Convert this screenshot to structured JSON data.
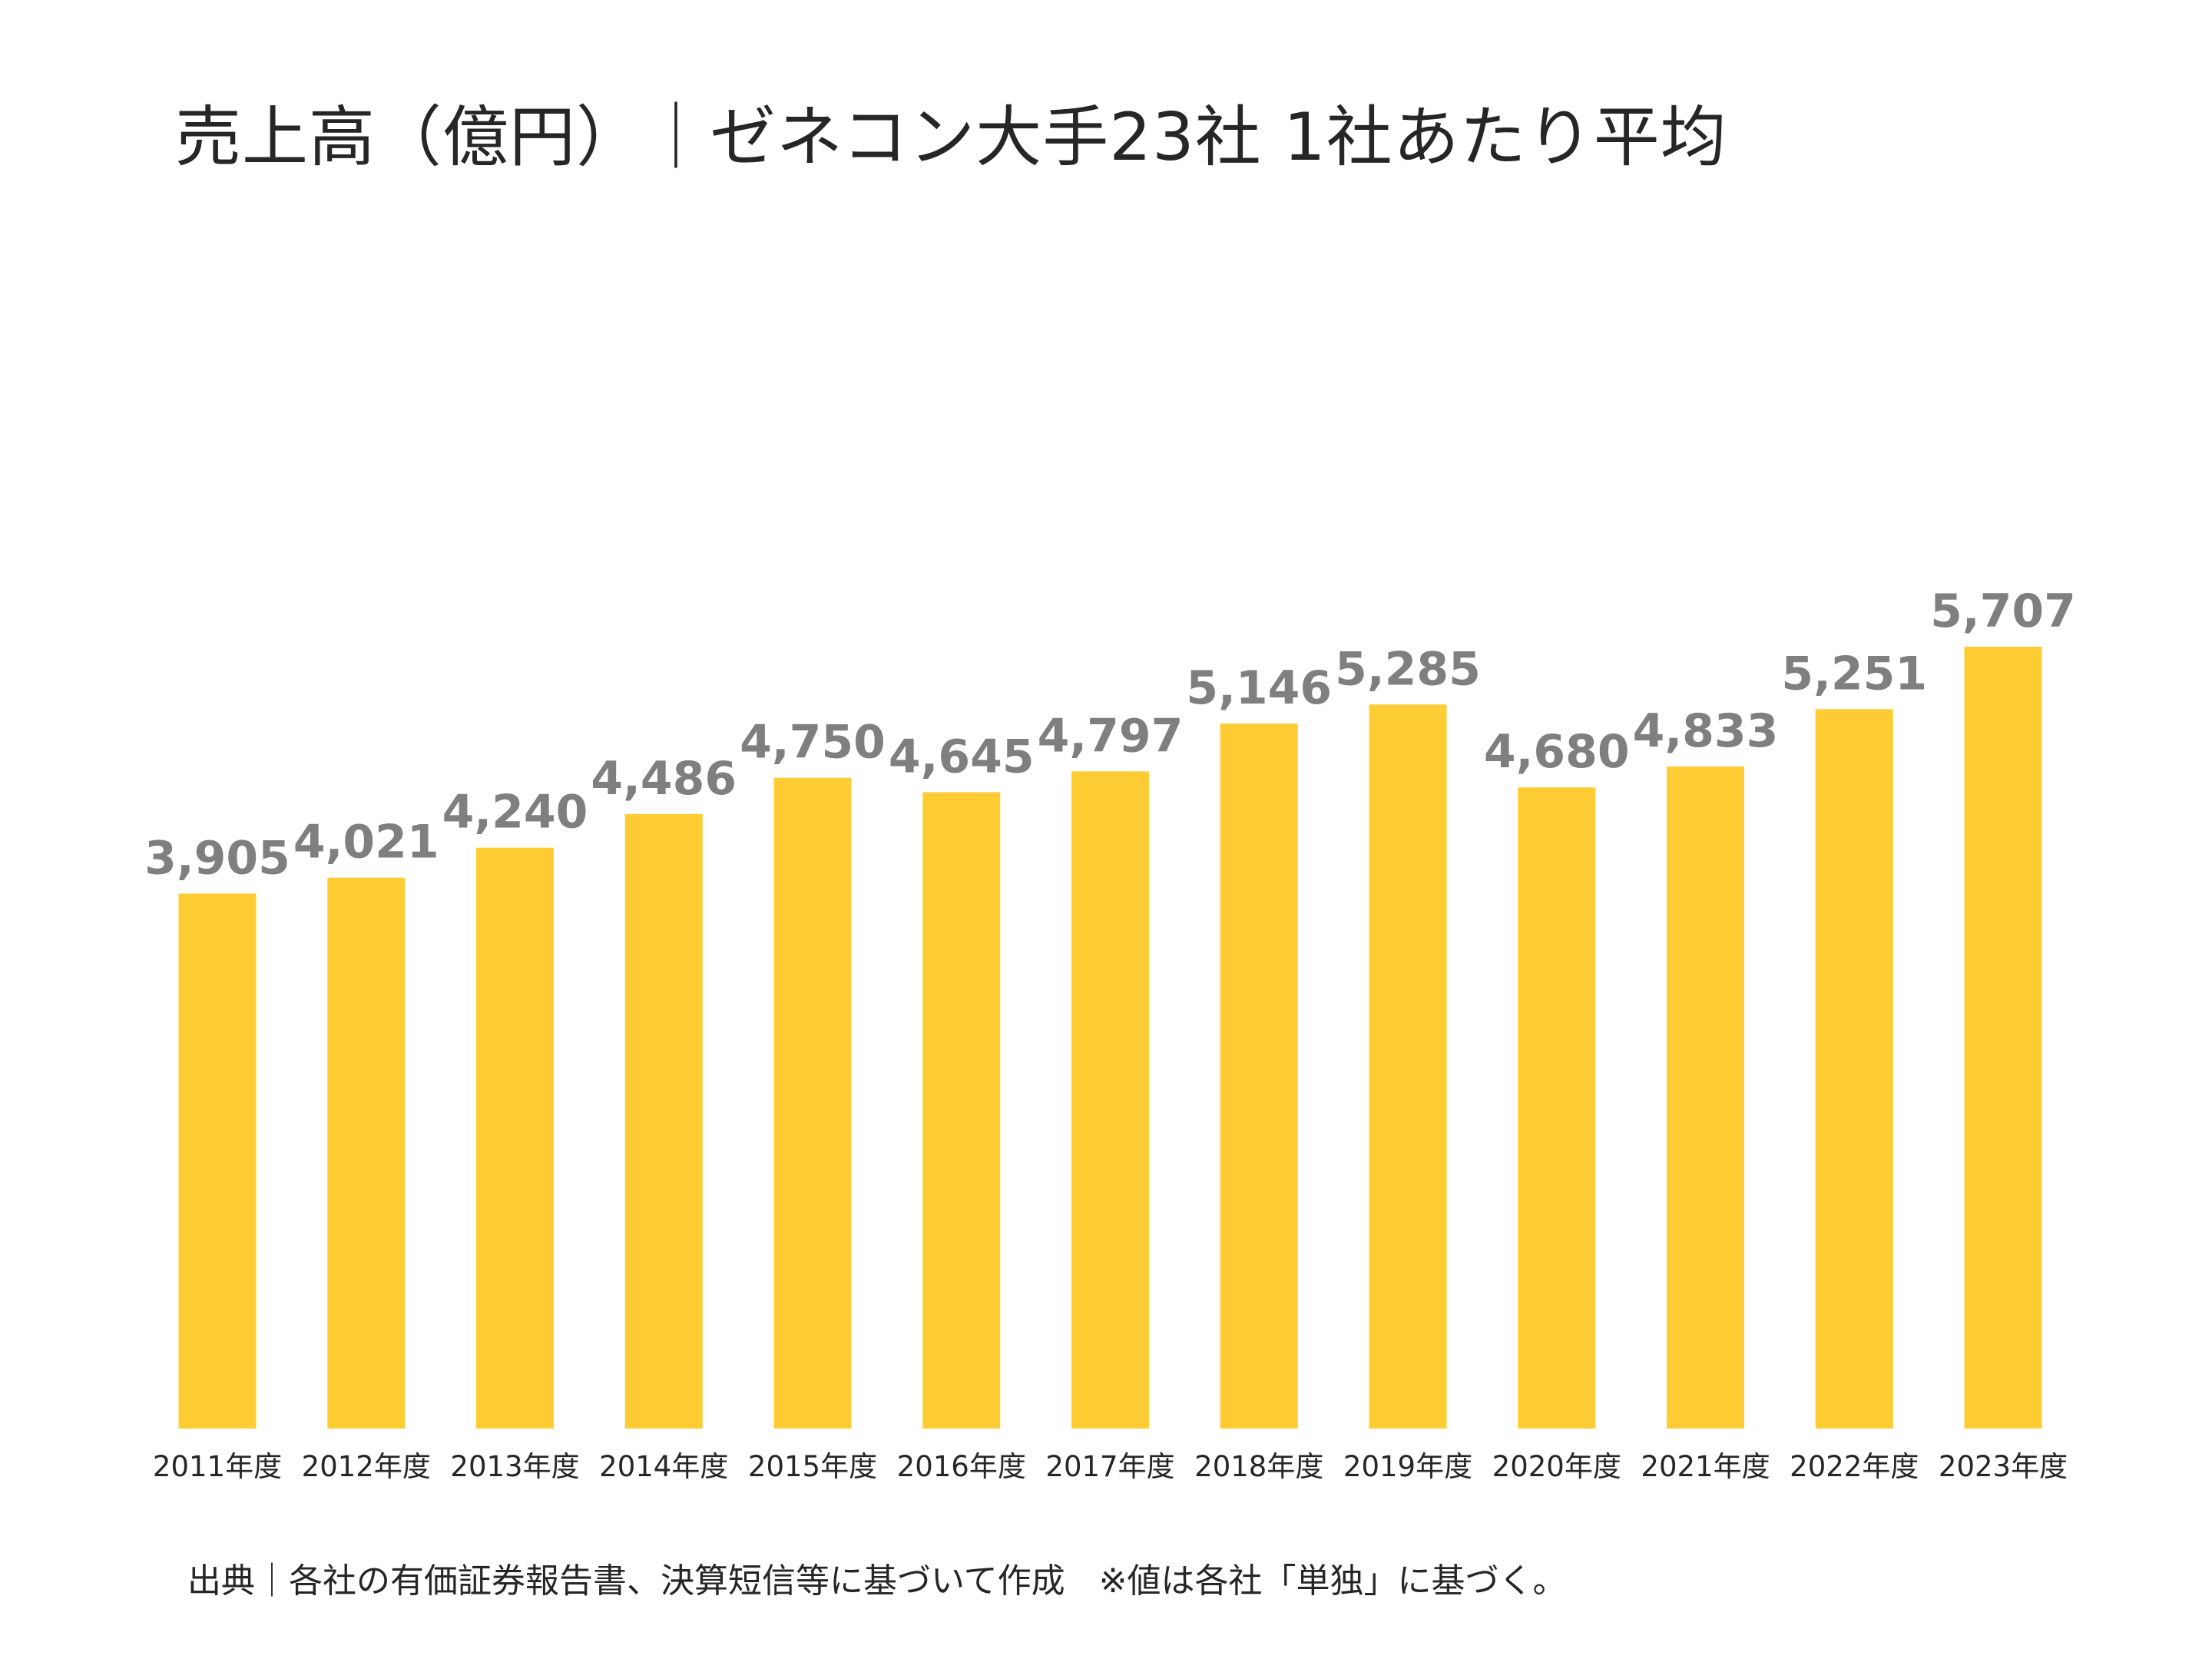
{
  "title": "売上高（億円）｜ゼネコン大手23社 1社あたり平均",
  "source_note": "出典｜各社の有価証券報告書、決算短信等に基づいて作成　※値は各社「単独」に基づく。",
  "colors": {
    "bar": "#FFCD33",
    "value_label": "#7F7F7F",
    "axis_label": "#262626",
    "title": "#262626"
  },
  "chart_data": {
    "type": "bar",
    "title": "売上高（億円）｜ゼネコン大手23社 1社あたり平均",
    "xlabel": "",
    "ylabel": "",
    "categories": [
      "2011年度",
      "2012年度",
      "2013年度",
      "2014年度",
      "2015年度",
      "2016年度",
      "2017年度",
      "2018年度",
      "2019年度",
      "2020年度",
      "2021年度",
      "2022年度",
      "2023年度"
    ],
    "values": [
      3905,
      4021,
      4240,
      4486,
      4750,
      4645,
      4797,
      5146,
      5285,
      4680,
      4833,
      5251,
      5707
    ],
    "value_labels": [
      "3,905",
      "4,021",
      "4,240",
      "4,486",
      "4,750",
      "4,645",
      "4,797",
      "5,146",
      "5,285",
      "4,680",
      "4,833",
      "5,251",
      "5,707"
    ],
    "ylim": [
      0,
      5707
    ],
    "grid": false,
    "legend": "none"
  }
}
